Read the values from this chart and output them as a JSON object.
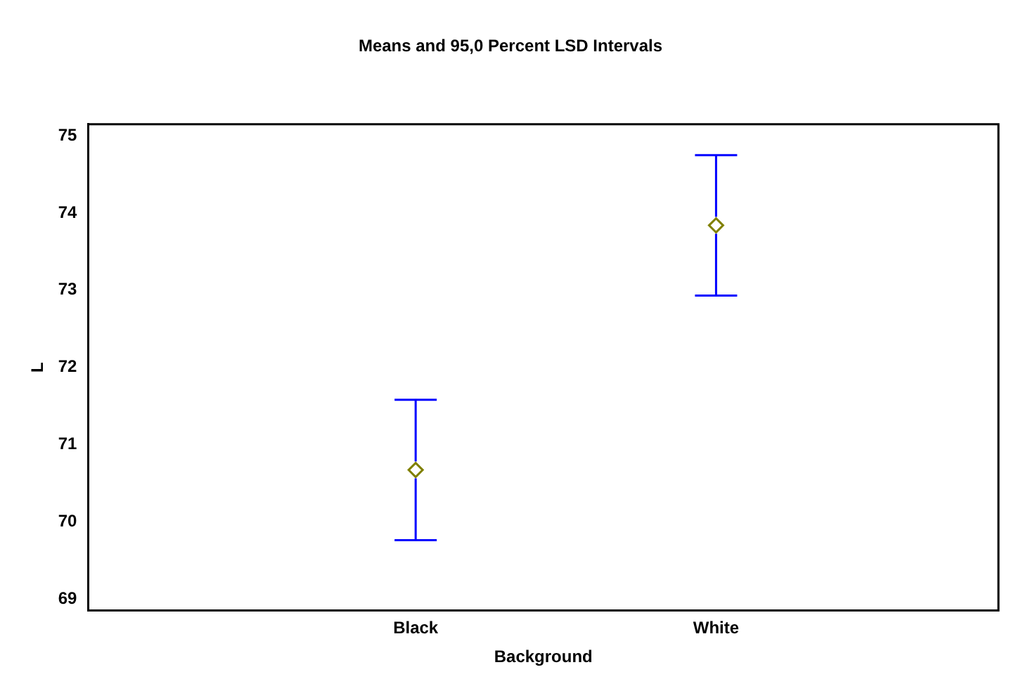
{
  "chart_data": {
    "type": "scatter",
    "title": "Means and 95,0 Percent LSD Intervals",
    "xlabel": "Background",
    "ylabel": "L",
    "categories": [
      "Black",
      "White"
    ],
    "series": [
      {
        "color": "#808000",
        "values": [
          70.67,
          73.84
        ],
        "errors": [
          0.91,
          0.91
        ]
      }
    ],
    "ylim": [
      68.85,
      75.15
    ],
    "yticks": [
      69,
      70,
      71,
      72,
      73,
      74,
      75
    ],
    "grid": false,
    "legend": false,
    "marker": "diamond"
  }
}
